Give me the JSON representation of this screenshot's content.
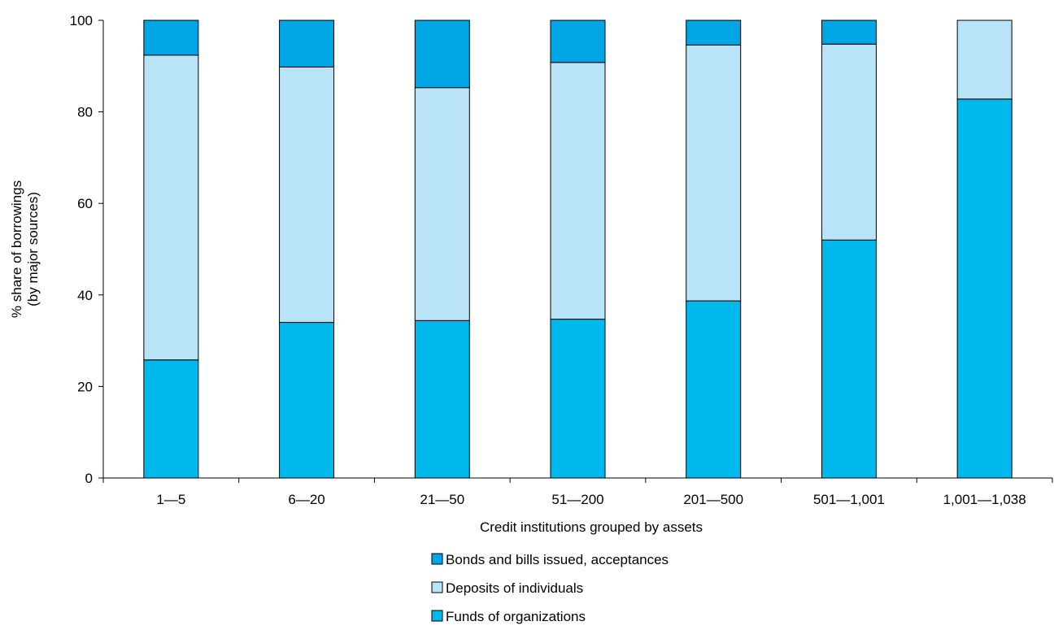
{
  "chart_data": {
    "type": "bar",
    "stacked": true,
    "categories": [
      "1—5",
      "6—20",
      "21—50",
      "51—200",
      "201—500",
      "501—1,001",
      "1,001—1,038"
    ],
    "series": [
      {
        "name": "Funds of organizations",
        "values": [
          25.8,
          34.0,
          34.4,
          34.7,
          38.7,
          52.0,
          82.8
        ],
        "color": "#00b9ec"
      },
      {
        "name": "Deposits of individuals",
        "values": [
          66.6,
          55.8,
          50.9,
          56.1,
          55.9,
          42.8,
          17.2
        ],
        "color": "#b9e3f7"
      },
      {
        "name": "Bonds and bills issued, acceptances",
        "values": [
          7.6,
          10.2,
          14.7,
          9.2,
          5.4,
          5.2,
          0.0
        ],
        "color": "#00a5e6"
      }
    ],
    "legend_order": [
      2,
      1,
      0
    ],
    "xlabel": "Credit institutions grouped by assets",
    "ylabel_lines": [
      "% share of borrowings",
      "(by major sources)"
    ],
    "ylim": [
      0,
      100
    ],
    "yticks": [
      0,
      20,
      40,
      60,
      80,
      100
    ],
    "grid": false,
    "legend_position": "bottom-center"
  }
}
